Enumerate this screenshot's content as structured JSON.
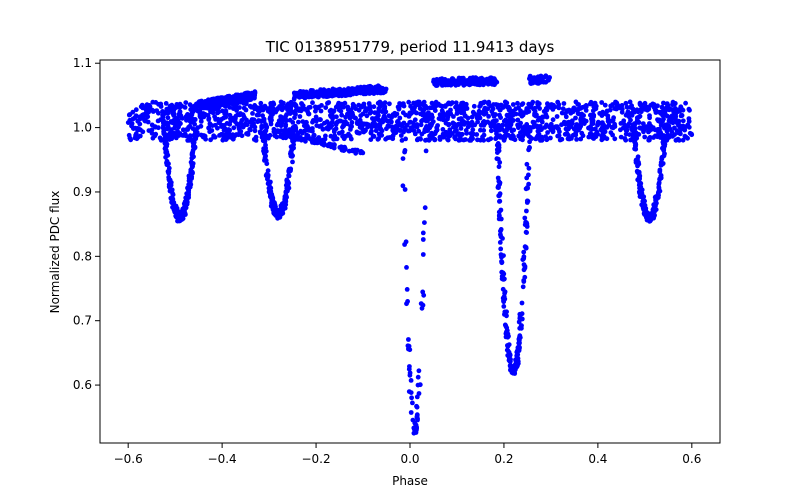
{
  "chart_data": {
    "type": "scatter",
    "title": "TIC 0138951779, period 11.9413 days",
    "xlabel": "Phase",
    "ylabel": "Normalized PDC flux",
    "xlim": [
      -0.66,
      0.66
    ],
    "ylim": [
      0.51,
      1.105
    ],
    "xticks": [
      -0.6,
      -0.4,
      -0.2,
      0.0,
      0.2,
      0.4,
      0.6
    ],
    "xtick_labels": [
      "−0.6",
      "−0.4",
      "−0.2",
      "0.0",
      "0.2",
      "0.4",
      "0.6"
    ],
    "yticks": [
      0.6,
      0.7,
      0.8,
      0.9,
      1.0,
      1.1
    ],
    "ytick_labels": [
      "0.6",
      "0.7",
      "0.8",
      "0.9",
      "1.0",
      "1.1"
    ],
    "grid": false,
    "marker_color": "#0000ff",
    "phase_range": [
      -0.6,
      0.6
    ],
    "baseline_flux": 1.01,
    "eclipses": [
      {
        "name": "primary",
        "phase_center": 0.01,
        "min_flux": 0.53,
        "half_width": 0.025
      },
      {
        "name": "secondary",
        "phase_center": 0.22,
        "min_flux": 0.62,
        "half_width": 0.035
      },
      {
        "name": "dip-left-a",
        "phase_center": -0.49,
        "min_flux": 0.86,
        "half_width": 0.035
      },
      {
        "name": "dip-left-b",
        "phase_center": -0.28,
        "min_flux": 0.865,
        "half_width": 0.035
      },
      {
        "name": "dip-right",
        "phase_center": 0.51,
        "min_flux": 0.86,
        "half_width": 0.035
      }
    ],
    "upper_branches": [
      {
        "name": "high-band",
        "x": [
          0.05,
          0.3
        ],
        "y": [
          1.07,
          1.075
        ]
      },
      {
        "name": "rising-band",
        "x": [
          -0.25,
          -0.05
        ],
        "y": [
          1.05,
          1.06
        ]
      },
      {
        "name": "left-shelf",
        "x": [
          -0.45,
          -0.33
        ],
        "y": [
          1.035,
          1.05
        ]
      }
    ],
    "trend_lines": [
      {
        "name": "descending-trail",
        "x": [
          -0.27,
          -0.1
        ],
        "y": [
          0.99,
          0.96
        ]
      }
    ]
  }
}
